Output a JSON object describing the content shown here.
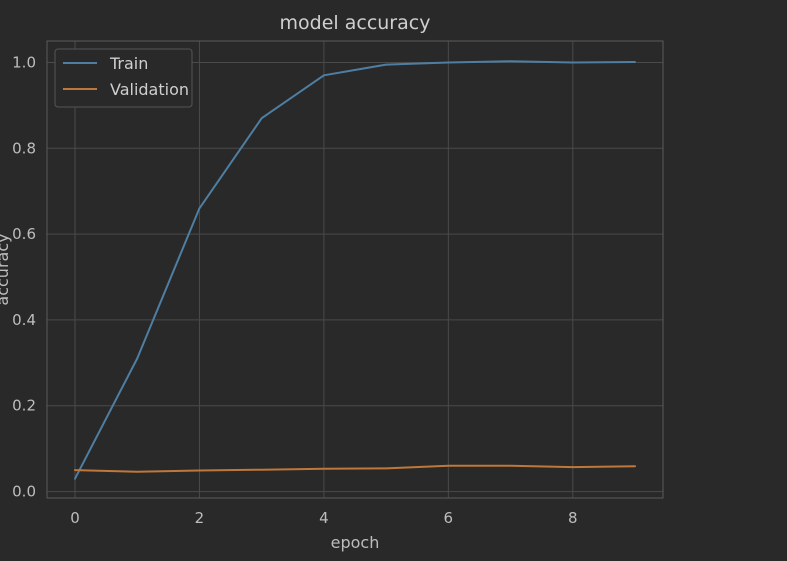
{
  "chart_data": {
    "type": "line",
    "title": "model accuracy",
    "xlabel": "epoch",
    "ylabel": "accuracy",
    "x": [
      0,
      1,
      2,
      3,
      4,
      5,
      6,
      7,
      8,
      9
    ],
    "xlim": [
      -0.45,
      9.45
    ],
    "ylim": [
      -0.015,
      1.05
    ],
    "xticks": [
      0,
      2,
      4,
      6,
      8
    ],
    "yticks": [
      0.0,
      0.2,
      0.4,
      0.6,
      0.8,
      1.0
    ],
    "xtick_labels": [
      "0",
      "2",
      "4",
      "6",
      "8"
    ],
    "ytick_labels": [
      "0.0",
      "0.2",
      "0.4",
      "0.6",
      "0.8",
      "1.0"
    ],
    "grid": true,
    "legend_position": "top-left",
    "series": [
      {
        "name": "Train",
        "color": "#4e7fa3",
        "values": [
          0.03,
          0.31,
          0.66,
          0.87,
          0.97,
          0.995,
          1.0,
          1.003,
          1.0,
          1.001
        ]
      },
      {
        "name": "Validation",
        "color": "#c0773a",
        "values": [
          0.05,
          0.046,
          0.049,
          0.051,
          0.053,
          0.054,
          0.06,
          0.06,
          0.057,
          0.059
        ]
      }
    ],
    "colors": {
      "background": "#292929",
      "grid": "#4a4a4a",
      "axes_frame": "#5a5a5a",
      "text": "#bdbdbd"
    }
  }
}
